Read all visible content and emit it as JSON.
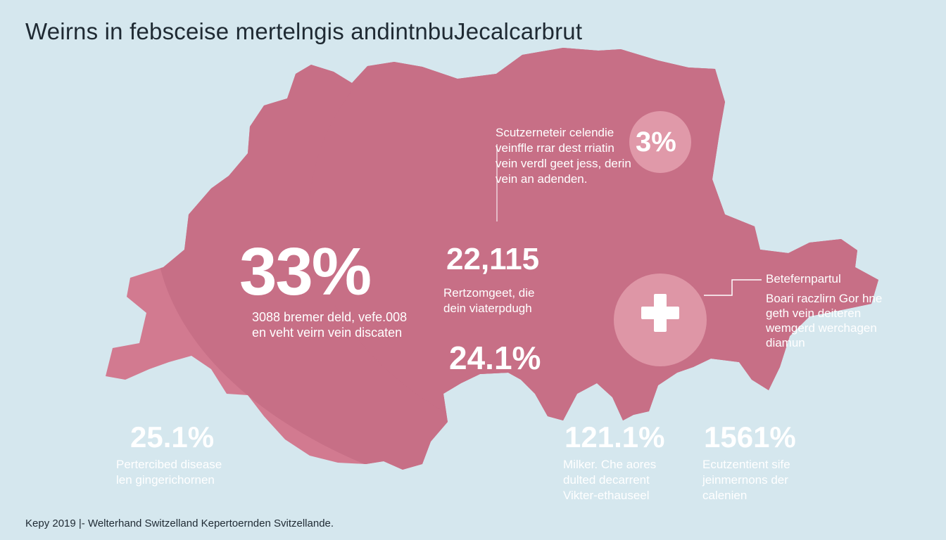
{
  "title": "Weirns in febsceise mertelngis andintnbuJecalcarbrut",
  "colors": {
    "background": "#d5e7ee",
    "map_fill": "#d27a90",
    "map_band": "#c76f86",
    "text_dark": "#1f2a33",
    "text_light": "#ffffff"
  },
  "stats": {
    "main": {
      "value": "33%",
      "lines": [
        "3088 bremer deld, vefe.008",
        "en veht veirn vein discaten"
      ]
    },
    "center": {
      "value": "22,115",
      "lines": [
        "Rertzomgeet, die",
        "dein viaterpdugh"
      ]
    },
    "mid": {
      "value": "24.1%"
    },
    "top_right": {
      "value": "3%",
      "lines": [
        "Scutzerneteir celendie",
        "veinffle rrar dest rriatin",
        "vein verdl geet jess, derin",
        "vein an adenden."
      ]
    },
    "cross_callout": {
      "label": "Betefernpartul",
      "lines": [
        "Boari raczlirn Gor hne",
        "geth vein deiteren",
        "wemgerd werchagen",
        "diamun"
      ]
    },
    "bottom_left": {
      "value": "25.1%",
      "lines": [
        "Pertercibed disease",
        "len gingerichornen"
      ]
    },
    "bottom_mid": {
      "value": "121.1%",
      "lines": [
        "Milker. Che aores",
        "dulted decarrent",
        "Vikter-ethauseel"
      ]
    },
    "bottom_right": {
      "value": "1561%",
      "lines": [
        "Ecutzentient sife",
        "jeinmernons der",
        "calenien"
      ]
    }
  },
  "icons": {
    "cross": "swiss-cross-icon"
  },
  "footer": "Kepy 2019 |- Welterhand Switzelland Kepertoernden Svitzellande."
}
